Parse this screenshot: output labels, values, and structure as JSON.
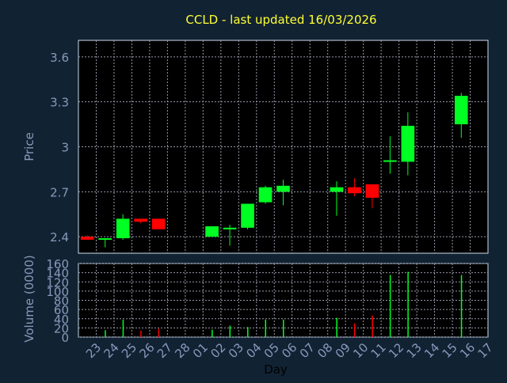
{
  "title": "CCLD - last updated 16/03/2026",
  "colors": {
    "background": "#112233",
    "plot_background": "#000000",
    "grid": "#9999aa",
    "axis_text": "#8899bb",
    "title_text": "#ffff33",
    "up": "#00ff22",
    "down": "#ff0000",
    "axis_line": "#ccddee"
  },
  "chart_data": [
    {
      "type": "candlestick",
      "ylabel": "Price",
      "ylim": [
        2.29,
        3.71
      ],
      "yticks": [
        2.4,
        2.7,
        3,
        3.3,
        3.6
      ],
      "ytick_labels": [
        "2.4",
        "2.7",
        "3",
        "3.3",
        "3.6"
      ],
      "grid": true,
      "candles": [
        {
          "x": "23",
          "open": 2.4,
          "high": 2.41,
          "low": 2.38,
          "close": 2.38
        },
        {
          "x": "24",
          "open": 2.38,
          "high": 2.39,
          "low": 2.33,
          "close": 2.39
        },
        {
          "x": "25",
          "open": 2.39,
          "high": 2.55,
          "low": 2.38,
          "close": 2.52
        },
        {
          "x": "26",
          "open": 2.52,
          "high": 2.52,
          "low": 2.49,
          "close": 2.5
        },
        {
          "x": "27",
          "open": 2.52,
          "high": 2.52,
          "low": 2.45,
          "close": 2.45
        },
        {
          "x": "02",
          "open": 2.4,
          "high": 2.47,
          "low": 2.4,
          "close": 2.47
        },
        {
          "x": "03",
          "open": 2.45,
          "high": 2.48,
          "low": 2.34,
          "close": 2.46
        },
        {
          "x": "04",
          "open": 2.46,
          "high": 2.62,
          "low": 2.45,
          "close": 2.62
        },
        {
          "x": "05",
          "open": 2.63,
          "high": 2.74,
          "low": 2.62,
          "close": 2.73
        },
        {
          "x": "06",
          "open": 2.7,
          "high": 2.78,
          "low": 2.61,
          "close": 2.74
        },
        {
          "x": "09",
          "open": 2.7,
          "high": 2.77,
          "low": 2.54,
          "close": 2.73
        },
        {
          "x": "10",
          "open": 2.73,
          "high": 2.79,
          "low": 2.67,
          "close": 2.69
        },
        {
          "x": "11",
          "open": 2.75,
          "high": 2.75,
          "low": 2.59,
          "close": 2.66
        },
        {
          "x": "12",
          "open": 2.9,
          "high": 3.07,
          "low": 2.82,
          "close": 2.91
        },
        {
          "x": "13",
          "open": 2.9,
          "high": 3.23,
          "low": 2.81,
          "close": 3.14
        },
        {
          "x": "16",
          "open": 3.15,
          "high": 3.36,
          "low": 3.06,
          "close": 3.34
        }
      ]
    },
    {
      "type": "bar",
      "ylabel": "Volume (0000)",
      "xlabel": "Day",
      "ylim": [
        0,
        160
      ],
      "yticks": [
        0,
        20,
        40,
        60,
        80,
        100,
        120,
        140,
        160
      ],
      "ytick_labels": [
        "0",
        "20",
        "40",
        "60",
        "80",
        "100",
        "120",
        "140",
        "160"
      ],
      "categories": [
        "23",
        "24",
        "25",
        "26",
        "27",
        "28",
        "01",
        "02",
        "03",
        "04",
        "05",
        "06",
        "07",
        "08",
        "09",
        "10",
        "11",
        "12",
        "13",
        "14",
        "15",
        "16",
        "17"
      ],
      "series": [
        {
          "values": [
            0,
            15,
            38,
            14,
            18,
            0,
            0,
            16,
            25,
            22,
            38,
            38,
            0,
            0,
            42,
            30,
            47,
            135,
            142,
            0,
            0,
            135,
            0
          ],
          "directions": [
            "down",
            "up",
            "up",
            "down",
            "down",
            "",
            "",
            "up",
            "up",
            "up",
            "up",
            "up",
            "",
            "",
            "up",
            "down",
            "down",
            "up",
            "up",
            "",
            "",
            "up",
            ""
          ]
        }
      ]
    }
  ]
}
